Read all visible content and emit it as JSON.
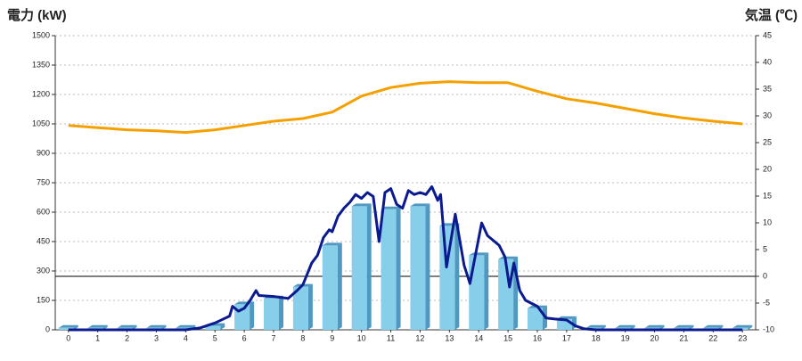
{
  "chart_data": {
    "type": "combo",
    "y_label": "電力 (kW)",
    "y2_label": "気温 (℃)",
    "xlim": [
      -0.45,
      23.45
    ],
    "xticks": [
      0,
      1,
      2,
      3,
      4,
      5,
      6,
      7,
      8,
      9,
      10,
      11,
      12,
      13,
      14,
      15,
      16,
      17,
      18,
      19,
      20,
      21,
      22,
      23
    ],
    "ylim": [
      0,
      1500
    ],
    "yticks": [
      0,
      150,
      300,
      450,
      600,
      750,
      900,
      1050,
      1200,
      1350,
      1500
    ],
    "y2lim": [
      -10,
      45
    ],
    "y2ticks": [
      -10,
      -5,
      0,
      5,
      10,
      15,
      20,
      25,
      30,
      35,
      40,
      45
    ],
    "grid": true,
    "y2_zero_line": true,
    "y_label_color": "#1f5fa8",
    "y2_label_color": "#f08a1c",
    "series": [
      {
        "type": "bar",
        "color": "#87ceeb",
        "side_color": "#4f98c0",
        "x": [
          0,
          1,
          2,
          3,
          4,
          5,
          6,
          7,
          8,
          9,
          10,
          11,
          12,
          13,
          14,
          15,
          16,
          17,
          18,
          19,
          20,
          21,
          22,
          23
        ],
        "values": [
          10,
          10,
          10,
          10,
          10,
          20,
          130,
          160,
          220,
          430,
          630,
          615,
          630,
          530,
          380,
          360,
          110,
          55,
          10,
          10,
          10,
          10,
          10,
          10
        ]
      },
      {
        "type": "line",
        "color": "#0b1a8f",
        "x": [
          0,
          1,
          2,
          3,
          4,
          4.5,
          5,
          5.5,
          5.6,
          5.8,
          6,
          6.2,
          6.4,
          6.5,
          7,
          7.5,
          7.8,
          8,
          8.3,
          8.5,
          8.7,
          8.9,
          9,
          9.2,
          9.4,
          9.6,
          9.8,
          10,
          10.2,
          10.4,
          10.6,
          10.8,
          11,
          11.2,
          11.4,
          11.6,
          11.8,
          12,
          12.2,
          12.4,
          12.6,
          12.7,
          12.9,
          13.2,
          13.5,
          13.7,
          14.1,
          14.3,
          14.7,
          14.9,
          15.05,
          15.2,
          15.4,
          15.6,
          16,
          16.3,
          16.6,
          17,
          17.3,
          17.6,
          18,
          19,
          20,
          21,
          22,
          23
        ],
        "values": [
          0,
          0,
          0,
          0,
          0,
          10,
          35,
          70,
          120,
          95,
          110,
          150,
          200,
          175,
          170,
          160,
          200,
          230,
          340,
          380,
          470,
          510,
          500,
          580,
          620,
          650,
          690,
          670,
          700,
          680,
          450,
          700,
          720,
          640,
          620,
          710,
          690,
          700,
          690,
          730,
          660,
          690,
          320,
          590,
          330,
          236,
          545,
          480,
          430,
          370,
          218,
          340,
          200,
          150,
          120,
          60,
          55,
          50,
          20,
          5,
          0,
          0,
          0,
          0,
          0,
          0
        ]
      },
      {
        "type": "line",
        "axis": "y2",
        "color": "#f5a000",
        "x": [
          0,
          1,
          2,
          3,
          4,
          5,
          6,
          7,
          8,
          9,
          10,
          11,
          12,
          13,
          14,
          15,
          16,
          17,
          18,
          19,
          20,
          21,
          22,
          23
        ],
        "values": [
          28.2,
          27.8,
          27.4,
          27.2,
          26.9,
          27.4,
          28.2,
          29,
          29.5,
          30.7,
          33.7,
          35.3,
          36.1,
          36.4,
          36.2,
          36.2,
          34.6,
          33.2,
          32.4,
          31.4,
          30.4,
          29.6,
          29,
          28.5
        ]
      }
    ]
  }
}
